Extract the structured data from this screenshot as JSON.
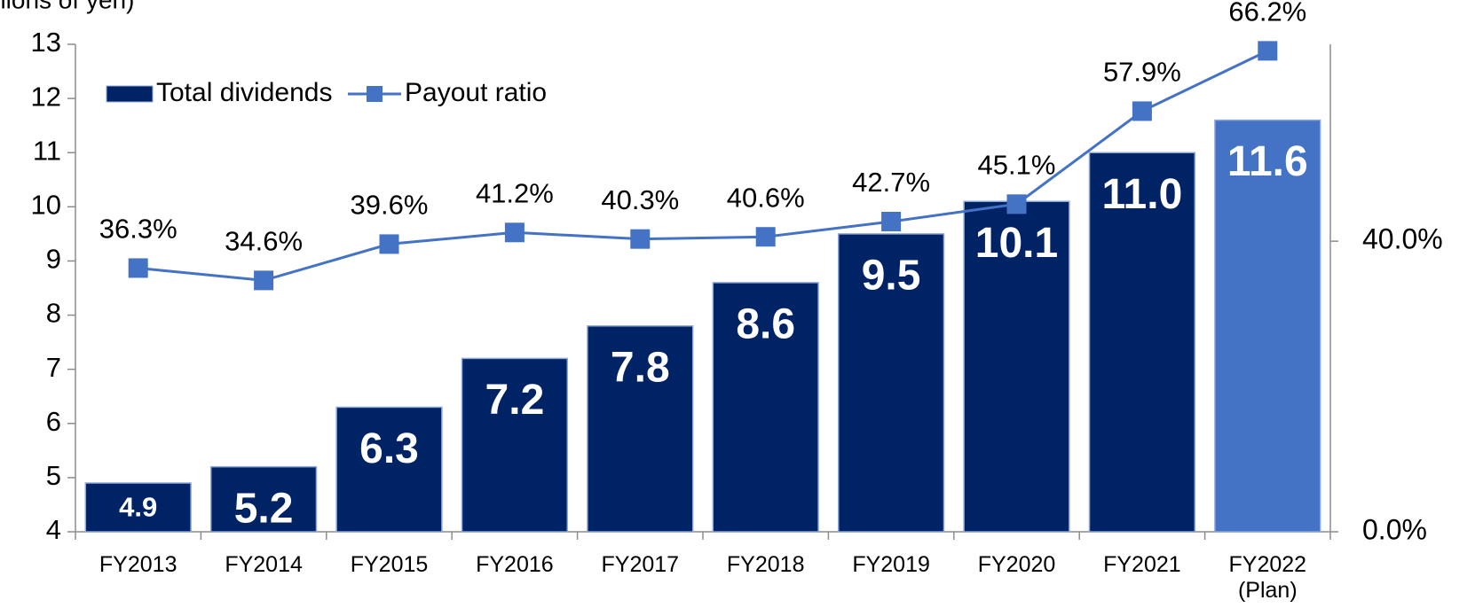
{
  "chart_data": {
    "type": "bar",
    "y_axis_label": "(Billions of yen)",
    "categories": [
      "FY2013",
      "FY2014",
      "FY2015",
      "FY2016",
      "FY2017",
      "FY2018",
      "FY2019",
      "FY2020",
      "FY2021",
      "FY2022\n(Plan)"
    ],
    "ylim": [
      4,
      13
    ],
    "yticks": [
      4,
      5,
      6,
      7,
      8,
      9,
      10,
      11,
      12,
      13
    ],
    "y2lim": [
      0,
      67.1
    ],
    "y2ticks": [
      {
        "value": 0,
        "label": "0.0%"
      },
      {
        "value": 40,
        "label": "40.0%"
      }
    ],
    "series": [
      {
        "name": "Total dividends",
        "type": "bar",
        "color": "#002366",
        "colors": [
          "#002366",
          "#002366",
          "#002366",
          "#002366",
          "#002366",
          "#002366",
          "#002366",
          "#002366",
          "#002366",
          "#4472c4"
        ],
        "values": [
          4.9,
          5.2,
          6.3,
          7.2,
          7.8,
          8.6,
          9.5,
          10.1,
          11.0,
          11.6
        ],
        "value_labels": [
          "4.9",
          "5.2",
          "6.3",
          "7.2",
          "7.8",
          "8.6",
          "9.5",
          "10.1",
          "11.0",
          "11.6"
        ]
      },
      {
        "name": "Payout ratio",
        "type": "line",
        "axis": "y2",
        "color": "#4472c4",
        "values": [
          36.3,
          34.6,
          39.6,
          41.2,
          40.3,
          40.6,
          42.7,
          45.1,
          57.9,
          66.2
        ],
        "value_labels": [
          "36.3%",
          "34.6%",
          "39.6%",
          "41.2%",
          "40.3%",
          "40.6%",
          "42.7%",
          "45.1%",
          "57.9%",
          "66.2%"
        ]
      }
    ],
    "legend": "top-left"
  }
}
